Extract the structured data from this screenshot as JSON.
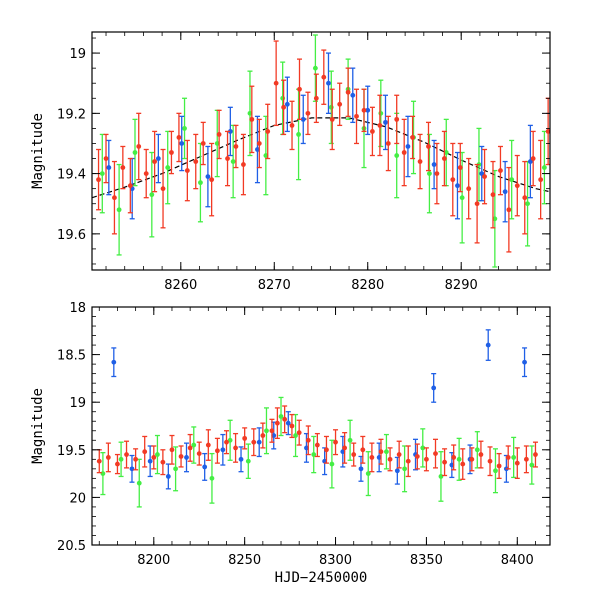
{
  "chart_data": [
    {
      "type": "scatter",
      "xlabel": "",
      "ylabel": "Magnitude",
      "xlim": [
        8250.5,
        8299.5
      ],
      "ylim": [
        19.72,
        18.93
      ],
      "y_inverted": true,
      "error_bars": true,
      "xticks": [
        8260,
        8270,
        8280,
        8290
      ],
      "yticks": [
        19.0,
        19.2,
        19.4,
        19.6
      ],
      "ytick_labels": [
        "19",
        "19.2",
        "19.4",
        "19.6"
      ],
      "colors": {
        "blue": "#1f5fe6",
        "green": "#44ee44",
        "red": "#f23a24"
      },
      "model_curve": {
        "style": "dashed",
        "color": "#000000",
        "x": [
          8250.5,
          8254,
          8258,
          8262,
          8266,
          8270,
          8274,
          8278,
          8282,
          8286,
          8290,
          8294,
          8298,
          8299.5
        ],
        "y": [
          19.48,
          19.445,
          19.4,
          19.345,
          19.29,
          19.24,
          19.215,
          19.215,
          19.245,
          19.295,
          19.355,
          19.41,
          19.45,
          19.46
        ]
      },
      "series": [
        {
          "color": "#f23a24",
          "x": [
            8251.2,
            8252.0,
            8252.9,
            8253.8,
            8254.6,
            8255.5,
            8256.3,
            8257.2,
            8258.1,
            8259.0,
            8259.8,
            8260.7,
            8261.6,
            8262.4,
            8263.3,
            8264.1,
            8265.0,
            8265.9,
            8266.7,
            8267.6,
            8268.4,
            8269.3,
            8270.2,
            8271.0,
            8271.9,
            8272.7,
            8273.6,
            8274.5,
            8275.3,
            8276.2,
            8277.0,
            8277.9,
            8278.8,
            8279.6,
            8280.5,
            8281.3,
            8282.2,
            8283.1,
            8283.9,
            8284.8,
            8285.6,
            8286.5,
            8287.4,
            8288.2,
            8289.1,
            8289.9,
            8290.8,
            8291.7,
            8292.5,
            8293.4,
            8294.2,
            8295.1,
            8296.0,
            8296.8,
            8297.7,
            8298.5,
            8299.3
          ],
          "y": [
            19.42,
            19.35,
            19.48,
            19.38,
            19.44,
            19.31,
            19.4,
            19.36,
            19.45,
            19.33,
            19.28,
            19.39,
            19.36,
            19.3,
            19.42,
            19.27,
            19.35,
            19.31,
            19.37,
            19.22,
            19.3,
            19.26,
            19.1,
            19.18,
            19.24,
            19.12,
            19.2,
            19.15,
            19.08,
            19.22,
            19.17,
            19.13,
            19.21,
            19.19,
            19.26,
            19.24,
            19.3,
            19.22,
            19.33,
            19.28,
            19.36,
            19.31,
            19.4,
            19.35,
            19.42,
            19.38,
            19.45,
            19.5,
            19.41,
            19.47,
            19.39,
            19.52,
            19.44,
            19.48,
            19.35,
            19.42,
            19.26
          ],
          "err": [
            0.1,
            0.08,
            0.12,
            0.07,
            0.09,
            0.11,
            0.08,
            0.1,
            0.13,
            0.07,
            0.08,
            0.1,
            0.09,
            0.07,
            0.12,
            0.08,
            0.09,
            0.07,
            0.1,
            0.11,
            0.08,
            0.09,
            0.14,
            0.09,
            0.08,
            0.1,
            0.07,
            0.08,
            0.09,
            0.1,
            0.07,
            0.08,
            0.09,
            0.07,
            0.08,
            0.1,
            0.09,
            0.08,
            0.11,
            0.07,
            0.09,
            0.08,
            0.1,
            0.09,
            0.12,
            0.08,
            0.1,
            0.13,
            0.09,
            0.11,
            0.08,
            0.14,
            0.1,
            0.12,
            0.09,
            0.13,
            0.11
          ]
        },
        {
          "color": "#44ee44",
          "x": [
            8251.6,
            8253.4,
            8255.1,
            8256.9,
            8258.6,
            8260.4,
            8262.1,
            8263.9,
            8265.6,
            8267.4,
            8269.1,
            8270.9,
            8272.6,
            8274.4,
            8276.1,
            8277.9,
            8279.6,
            8281.4,
            8283.1,
            8284.9,
            8286.6,
            8288.4,
            8290.1,
            8291.9,
            8293.6,
            8295.4,
            8297.1,
            8298.9
          ],
          "y": [
            19.4,
            19.52,
            19.33,
            19.47,
            19.38,
            19.25,
            19.43,
            19.3,
            19.36,
            19.2,
            19.34,
            19.15,
            19.27,
            19.05,
            19.18,
            19.12,
            19.25,
            19.2,
            19.34,
            19.28,
            19.4,
            19.33,
            19.48,
            19.37,
            19.55,
            19.42,
            19.5,
            19.38
          ],
          "err": [
            0.13,
            0.15,
            0.11,
            0.14,
            0.12,
            0.1,
            0.13,
            0.11,
            0.12,
            0.14,
            0.13,
            0.12,
            0.15,
            0.11,
            0.12,
            0.1,
            0.13,
            0.11,
            0.14,
            0.12,
            0.13,
            0.11,
            0.15,
            0.12,
            0.16,
            0.13,
            0.14,
            0.12
          ]
        },
        {
          "color": "#1f5fe6",
          "x": [
            8252.3,
            8254.8,
            8257.6,
            8260.1,
            8262.9,
            8265.3,
            8268.2,
            8271.4,
            8273.1,
            8275.8,
            8278.4,
            8280.0,
            8281.9,
            8284.3,
            8287.1,
            8289.6,
            8292.2,
            8294.7,
            8297.4
          ],
          "y": [
            19.38,
            19.45,
            19.35,
            19.3,
            19.41,
            19.26,
            19.32,
            19.17,
            19.22,
            19.1,
            19.14,
            19.19,
            19.23,
            19.31,
            19.37,
            19.44,
            19.4,
            19.46,
            19.36
          ],
          "err": [
            0.09,
            0.1,
            0.08,
            0.09,
            0.1,
            0.08,
            0.11,
            0.09,
            0.08,
            0.1,
            0.09,
            0.08,
            0.09,
            0.1,
            0.08,
            0.11,
            0.09,
            0.1,
            0.12
          ]
        }
      ]
    },
    {
      "type": "scatter",
      "xlabel": "HJD−2450000",
      "ylabel": "Magnitude",
      "xlim": [
        8166,
        8418
      ],
      "ylim": [
        20.5,
        18.0
      ],
      "y_inverted": true,
      "error_bars": true,
      "xticks": [
        8200,
        8250,
        8300,
        8350,
        8400
      ],
      "yticks": [
        18.0,
        18.5,
        19.0,
        19.5,
        20.0,
        20.5
      ],
      "ytick_labels": [
        "18",
        "18.5",
        "19",
        "19.5",
        "20",
        "20.5"
      ],
      "colors": {
        "blue": "#1f5fe6",
        "green": "#44ee44",
        "red": "#f23a24"
      },
      "series": [
        {
          "color": "#f23a24",
          "x": [
            8170,
            8175,
            8180,
            8185,
            8190,
            8195,
            8200,
            8205,
            8210,
            8215,
            8220,
            8225,
            8230,
            8235,
            8240,
            8245,
            8250,
            8255,
            8260,
            8265,
            8268,
            8272,
            8276,
            8280,
            8285,
            8290,
            8295,
            8300,
            8305,
            8310,
            8315,
            8320,
            8325,
            8330,
            8335,
            8340,
            8345,
            8350,
            8355,
            8360,
            8365,
            8370,
            8375,
            8380,
            8385,
            8390,
            8395,
            8400,
            8405,
            8410
          ],
          "y": [
            19.62,
            19.58,
            19.65,
            19.55,
            19.6,
            19.52,
            19.58,
            19.63,
            19.5,
            19.57,
            19.48,
            19.54,
            19.45,
            19.51,
            19.42,
            19.48,
            19.38,
            19.42,
            19.35,
            19.3,
            19.22,
            19.18,
            19.25,
            19.32,
            19.4,
            19.45,
            19.5,
            19.42,
            19.48,
            19.55,
            19.5,
            19.58,
            19.52,
            19.6,
            19.55,
            19.62,
            19.57,
            19.6,
            19.54,
            19.63,
            19.58,
            19.65,
            19.6,
            19.55,
            19.62,
            19.67,
            19.58,
            19.64,
            19.6,
            19.55
          ],
          "err": [
            0.12,
            0.15,
            0.1,
            0.14,
            0.11,
            0.16,
            0.12,
            0.13,
            0.15,
            0.11,
            0.14,
            0.12,
            0.16,
            0.13,
            0.12,
            0.15,
            0.11,
            0.14,
            0.13,
            0.12,
            0.16,
            0.14,
            0.12,
            0.13,
            0.15,
            0.12,
            0.14,
            0.13,
            0.16,
            0.12,
            0.14,
            0.15,
            0.13,
            0.12,
            0.14,
            0.16,
            0.13,
            0.12,
            0.15,
            0.14,
            0.13,
            0.16,
            0.12,
            0.14,
            0.15,
            0.13,
            0.12,
            0.16,
            0.14,
            0.13
          ]
        },
        {
          "color": "#44ee44",
          "x": [
            8172,
            8182,
            8192,
            8202,
            8212,
            8222,
            8232,
            8242,
            8252,
            8262,
            8270,
            8278,
            8288,
            8298,
            8308,
            8318,
            8328,
            8338,
            8348,
            8358,
            8368,
            8378,
            8388,
            8398,
            8408
          ],
          "y": [
            19.75,
            19.6,
            19.85,
            19.55,
            19.7,
            19.45,
            19.8,
            19.4,
            19.62,
            19.3,
            19.15,
            19.35,
            19.55,
            19.65,
            19.4,
            19.75,
            19.52,
            19.7,
            19.48,
            19.78,
            19.6,
            19.5,
            19.72,
            19.58,
            19.66
          ],
          "err": [
            0.22,
            0.18,
            0.25,
            0.2,
            0.23,
            0.19,
            0.26,
            0.21,
            0.18,
            0.24,
            0.2,
            0.22,
            0.19,
            0.25,
            0.21,
            0.23,
            0.18,
            0.24,
            0.2,
            0.26,
            0.22,
            0.19,
            0.23,
            0.21,
            0.2
          ]
        },
        {
          "color": "#1f5fe6",
          "x": [
            8178,
            8188,
            8198,
            8208,
            8218,
            8228,
            8238,
            8248,
            8258,
            8266,
            8274,
            8284,
            8294,
            8304,
            8314,
            8324,
            8334,
            8344,
            8354,
            8364,
            8374,
            8384,
            8394,
            8404
          ],
          "y": [
            18.58,
            19.7,
            19.62,
            19.78,
            19.58,
            19.68,
            19.5,
            19.6,
            19.42,
            19.35,
            19.22,
            19.48,
            19.62,
            19.52,
            19.7,
            19.58,
            19.72,
            19.55,
            18.85,
            19.66,
            19.6,
            18.4,
            19.7,
            18.58
          ],
          "err": [
            0.15,
            0.14,
            0.16,
            0.13,
            0.15,
            0.14,
            0.16,
            0.13,
            0.15,
            0.14,
            0.12,
            0.15,
            0.14,
            0.16,
            0.13,
            0.15,
            0.14,
            0.16,
            0.15,
            0.13,
            0.15,
            0.16,
            0.14,
            0.15
          ]
        }
      ]
    }
  ]
}
